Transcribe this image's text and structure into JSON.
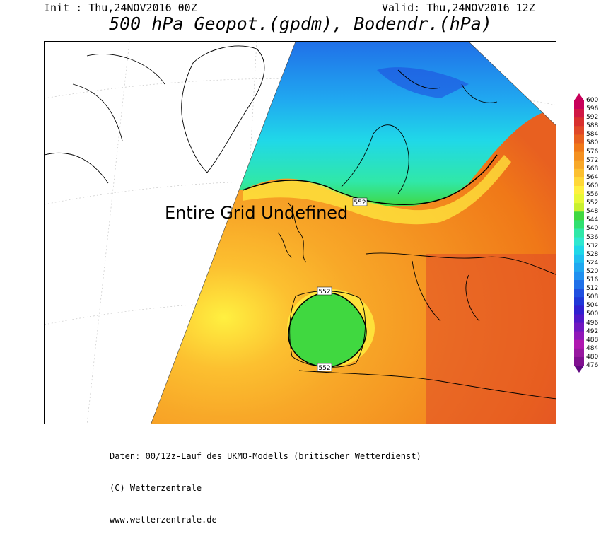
{
  "header": {
    "init": "Init : Thu,24NOV2016 00Z",
    "valid": "Valid: Thu,24NOV2016 12Z",
    "title": "500 hPa Geopot.(gpdm), Bodendr.(hPa)"
  },
  "map": {
    "undefined_text": "Entire Grid Undefined",
    "contour_labels": [
      "552",
      "552",
      "552"
    ]
  },
  "legend": {
    "levels": [
      "600",
      "596",
      "592",
      "588",
      "584",
      "580",
      "576",
      "572",
      "568",
      "564",
      "560",
      "556",
      "552",
      "548",
      "544",
      "540",
      "536",
      "532",
      "528",
      "524",
      "520",
      "516",
      "512",
      "508",
      "504",
      "500",
      "496",
      "492",
      "488",
      "484",
      "480",
      "476"
    ],
    "colors": [
      "#c8005a",
      "#d01844",
      "#d8302e",
      "#e04828",
      "#e86020",
      "#f07818",
      "#f49020",
      "#f8a828",
      "#fcc030",
      "#ffd838",
      "#fff040",
      "#e8f838",
      "#c8f030",
      "#40d840",
      "#30e070",
      "#30e8a8",
      "#30e8d0",
      "#20d8e8",
      "#20c0f0",
      "#20a8f0",
      "#2090f0",
      "#2070e8",
      "#2050e0",
      "#2038d8",
      "#3020d0",
      "#5018c8",
      "#7018c0",
      "#9018b8",
      "#b018b0",
      "#9818a0",
      "#801090",
      "#600880"
    ]
  },
  "footer": {
    "line1": "Daten: 00/12z-Lauf des UKMO-Modells (britischer Wetterdienst)",
    "line2": "(C) Wetterzentrale",
    "line3": "www.wetterzentrale.de"
  }
}
